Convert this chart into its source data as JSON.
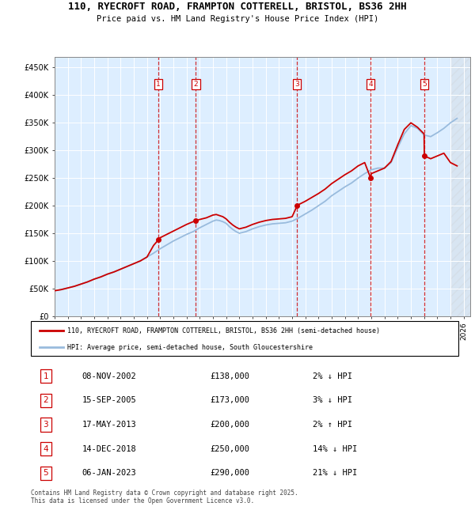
{
  "title1": "110, RYECROFT ROAD, FRAMPTON COTTERELL, BRISTOL, BS36 2HH",
  "title2": "Price paid vs. HM Land Registry's House Price Index (HPI)",
  "ylabel_ticks": [
    "£0",
    "£50K",
    "£100K",
    "£150K",
    "£200K",
    "£250K",
    "£300K",
    "£350K",
    "£400K",
    "£450K"
  ],
  "ytick_vals": [
    0,
    50000,
    100000,
    150000,
    200000,
    250000,
    300000,
    350000,
    400000,
    450000
  ],
  "ylim": [
    0,
    470000
  ],
  "xlim_start": 1995,
  "xlim_end": 2026.5,
  "hpi_color": "#99bbdd",
  "price_color": "#cc0000",
  "bg_color": "#ddeeff",
  "legend_line1": "110, RYECROFT ROAD, FRAMPTON COTTERELL, BRISTOL, BS36 2HH (semi-detached house)",
  "legend_line2": "HPI: Average price, semi-detached house, South Gloucestershire",
  "transactions": [
    {
      "num": 1,
      "date": "08-NOV-2002",
      "price": 138000,
      "pct": "2%",
      "dir": "↓",
      "year": 2002.86
    },
    {
      "num": 2,
      "date": "15-SEP-2005",
      "price": 173000,
      "pct": "3%",
      "dir": "↓",
      "year": 2005.71
    },
    {
      "num": 3,
      "date": "17-MAY-2013",
      "price": 200000,
      "pct": "2%",
      "dir": "↑",
      "year": 2013.38
    },
    {
      "num": 4,
      "date": "14-DEC-2018",
      "price": 250000,
      "pct": "14%",
      "dir": "↓",
      "year": 2018.95
    },
    {
      "num": 5,
      "date": "06-JAN-2023",
      "price": 290000,
      "pct": "21%",
      "dir": "↓",
      "year": 2023.02
    }
  ],
  "footer": "Contains HM Land Registry data © Crown copyright and database right 2025.\nThis data is licensed under the Open Government Licence v3.0.",
  "years_hpi": [
    1995,
    1995.5,
    1996,
    1996.5,
    1997,
    1997.5,
    1998,
    1998.5,
    1999,
    1999.5,
    2000,
    2000.5,
    2001,
    2001.5,
    2002,
    2002.5,
    2003,
    2003.5,
    2004,
    2004.5,
    2005,
    2005.5,
    2006,
    2006.5,
    2007,
    2007.25,
    2007.5,
    2007.75,
    2008,
    2008.25,
    2008.5,
    2008.75,
    2009,
    2009.5,
    2010,
    2010.5,
    2011,
    2011.5,
    2012,
    2012.5,
    2013,
    2013.5,
    2014,
    2014.5,
    2015,
    2015.5,
    2016,
    2016.5,
    2017,
    2017.5,
    2018,
    2018.5,
    2019,
    2019.5,
    2020,
    2020.5,
    2021,
    2021.5,
    2022,
    2022.5,
    2023,
    2023.5,
    2024,
    2024.5,
    2025,
    2025.5
  ],
  "hpi_vals": [
    46000,
    48000,
    51000,
    54000,
    58000,
    62000,
    67000,
    71000,
    76000,
    80000,
    85000,
    90000,
    95000,
    100000,
    107000,
    114000,
    122000,
    129000,
    136000,
    142000,
    148000,
    153000,
    160000,
    166000,
    172000,
    174000,
    173000,
    171000,
    168000,
    162000,
    157000,
    153000,
    150000,
    153000,
    158000,
    162000,
    165000,
    167000,
    168000,
    169000,
    172000,
    178000,
    185000,
    192000,
    200000,
    208000,
    218000,
    226000,
    234000,
    241000,
    250000,
    258000,
    265000,
    268000,
    268000,
    278000,
    305000,
    330000,
    345000,
    340000,
    328000,
    325000,
    332000,
    340000,
    350000,
    358000
  ],
  "years_price": [
    1995,
    1995.5,
    1996,
    1996.5,
    1997,
    1997.5,
    1998,
    1998.5,
    1999,
    1999.5,
    2000,
    2000.5,
    2001,
    2001.5,
    2002,
    2002.5,
    2002.86,
    2003,
    2003.5,
    2004,
    2004.5,
    2005,
    2005.5,
    2005.71,
    2006,
    2006.5,
    2007,
    2007.25,
    2007.5,
    2007.75,
    2008,
    2008.25,
    2008.5,
    2008.75,
    2009,
    2009.5,
    2010,
    2010.5,
    2011,
    2011.5,
    2012,
    2012.5,
    2013,
    2013.38,
    2013.5,
    2014,
    2014.5,
    2015,
    2015.5,
    2016,
    2016.5,
    2017,
    2017.5,
    2018,
    2018.5,
    2018.95,
    2019,
    2019.5,
    2020,
    2020.5,
    2021,
    2021.5,
    2022,
    2022.5,
    2023,
    2023.02,
    2023.5,
    2024,
    2024.5,
    2025,
    2025.5
  ],
  "price_vals": [
    46000,
    48000,
    51000,
    54000,
    58000,
    62000,
    67000,
    71000,
    76000,
    80000,
    85000,
    90000,
    95000,
    100000,
    107000,
    128000,
    138000,
    142000,
    148000,
    154000,
    160000,
    166000,
    171000,
    173000,
    175000,
    178000,
    183000,
    184000,
    182000,
    180000,
    176000,
    170000,
    165000,
    161000,
    158000,
    161000,
    166000,
    170000,
    173000,
    175000,
    176000,
    177000,
    180000,
    200000,
    202000,
    208000,
    215000,
    222000,
    230000,
    240000,
    248000,
    256000,
    263000,
    272000,
    278000,
    250000,
    258000,
    263000,
    268000,
    280000,
    310000,
    338000,
    350000,
    342000,
    330000,
    290000,
    285000,
    290000,
    295000,
    278000,
    272000
  ]
}
